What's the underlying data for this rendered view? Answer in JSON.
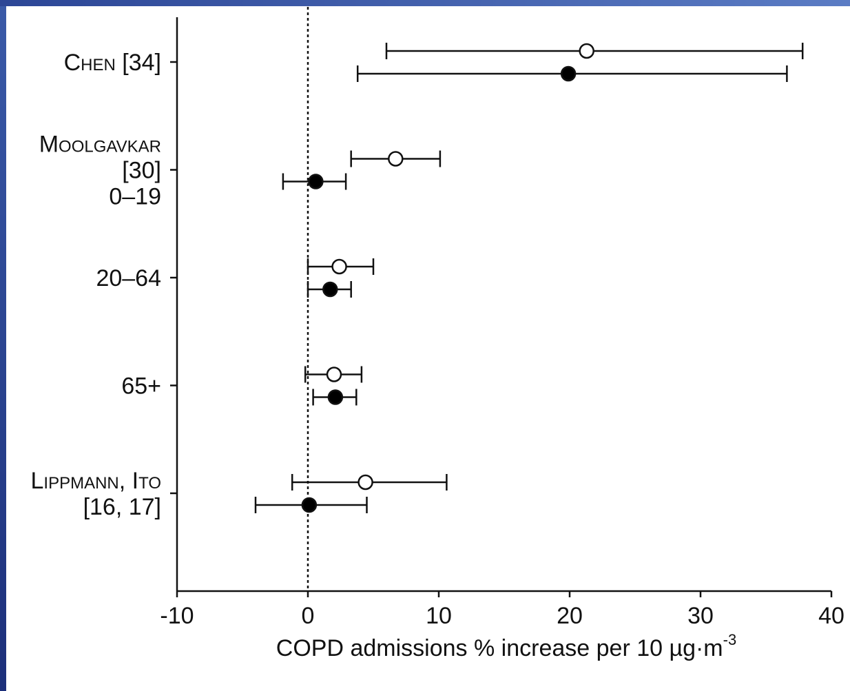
{
  "chart_data": {
    "type": "forest",
    "categories": [
      [
        "Chen [34]"
      ],
      [
        "Moolgavkar",
        "[30]",
        "0–19"
      ],
      [
        "20–64"
      ],
      [
        "65+"
      ],
      [
        "Lippmann, Ito",
        "[16, 17]"
      ]
    ],
    "series": [
      {
        "marker_fill": "#ffffff",
        "values": [
          21.3,
          6.7,
          2.4,
          2.0,
          4.4
        ],
        "lower": [
          6.0,
          3.3,
          0.0,
          -0.2,
          -1.2
        ],
        "upper": [
          37.8,
          10.1,
          5.0,
          4.1,
          10.6
        ]
      },
      {
        "marker_fill": "#000000",
        "values": [
          19.9,
          0.6,
          1.7,
          2.1,
          0.1
        ],
        "lower": [
          3.8,
          -1.9,
          0.0,
          0.4,
          -4.0
        ],
        "upper": [
          36.6,
          2.9,
          3.3,
          3.7,
          4.5
        ]
      }
    ],
    "xlim": [
      -10,
      40
    ],
    "xticks": [
      -10,
      0,
      10,
      20,
      30,
      40
    ],
    "reference_line": 0,
    "xlabel": "COPD admissions  % increase per 10 µg·m",
    "xlabel_exponent": "-3"
  }
}
